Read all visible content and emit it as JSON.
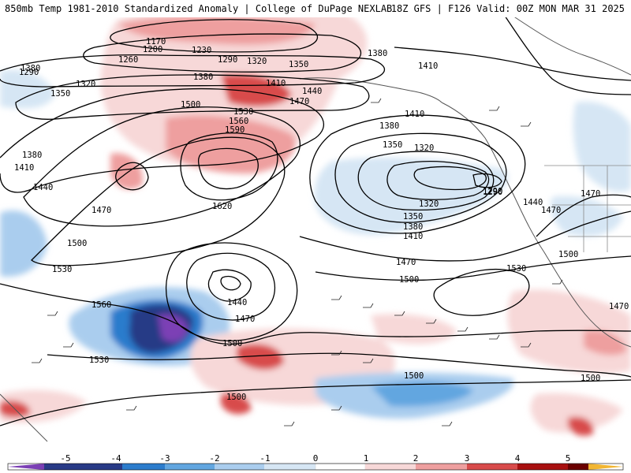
{
  "header": {
    "left_title": "850mb Temp 1981-2010 Standardized Anomaly | College of DuPage NEXLAB",
    "right_title": "18Z GFS | F126 Valid: 00Z MON MAR 31 2025"
  },
  "colorbar": {
    "ticks": [
      "-5",
      "-4",
      "-3",
      "-2",
      "-1",
      "0",
      "1",
      "2",
      "3",
      "4",
      "5"
    ],
    "colors": [
      "#7b3fb5",
      "#283a86",
      "#2c7ccc",
      "#62a6e0",
      "#aacdee",
      "#d6e6f4",
      "#ffffff",
      "#f7d8d8",
      "#ee9f9f",
      "#d84b4b",
      "#a81010",
      "#6b0000",
      "#f2b632"
    ]
  },
  "contour_labels": [
    {
      "text": "1170"
    },
    {
      "text": "1200"
    },
    {
      "text": "1230"
    },
    {
      "text": "1260"
    },
    {
      "text": "1290"
    },
    {
      "text": "1290"
    },
    {
      "text": "1320"
    },
    {
      "text": "1320"
    },
    {
      "text": "1350"
    },
    {
      "text": "1350"
    },
    {
      "text": "1380"
    },
    {
      "text": "1380"
    },
    {
      "text": "1410"
    },
    {
      "text": "1410"
    },
    {
      "text": "1440"
    },
    {
      "text": "1470"
    },
    {
      "text": "1500"
    },
    {
      "text": "1530"
    },
    {
      "text": "1560"
    },
    {
      "text": "1590"
    },
    {
      "text": "1620"
    },
    {
      "text": "1380"
    },
    {
      "text": "1410"
    },
    {
      "text": "1440"
    },
    {
      "text": "1470"
    },
    {
      "text": "1500"
    },
    {
      "text": "1530"
    },
    {
      "text": "1560"
    },
    {
      "text": "1380"
    },
    {
      "text": "1350"
    },
    {
      "text": "1320"
    },
    {
      "text": "1290"
    },
    {
      "text": "1320"
    },
    {
      "text": "1350"
    },
    {
      "text": "1380"
    },
    {
      "text": "1410"
    },
    {
      "text": "1470"
    },
    {
      "text": "1500"
    },
    {
      "text": "1440"
    },
    {
      "text": "1470"
    },
    {
      "text": "1500"
    },
    {
      "text": "1440"
    },
    {
      "text": "1470"
    },
    {
      "text": "1500"
    },
    {
      "text": "1530"
    },
    {
      "text": "1530"
    },
    {
      "text": "1500"
    },
    {
      "text": "1500"
    },
    {
      "text": "1470"
    },
    {
      "text": "1500"
    },
    {
      "text": "1470"
    },
    {
      "text": "1410"
    },
    {
      "text": "1380"
    },
    {
      "text": "1290"
    }
  ]
}
